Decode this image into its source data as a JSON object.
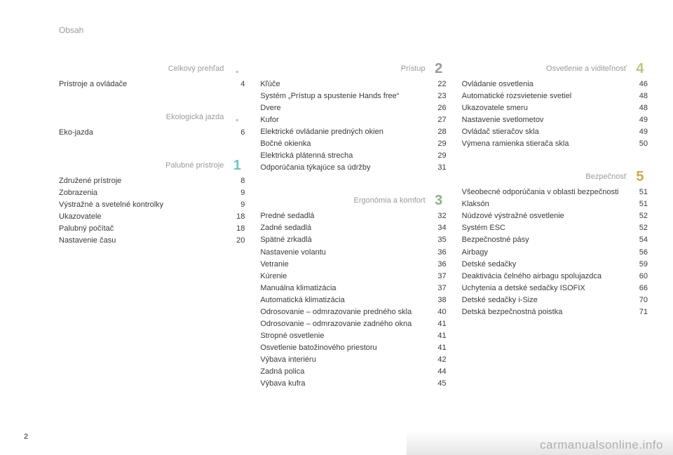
{
  "header": "Obsah",
  "page_number": "2",
  "watermark": "carmanualsonline.info",
  "columns": [
    {
      "sections": [
        {
          "title": "Celkový prehľad",
          "number": ".",
          "rule_color": "#d7c7d8",
          "num_color": "#bdbdbd",
          "entries": [
            {
              "label": "Prístroje a ovládače",
              "page": "4"
            }
          ]
        },
        {
          "title": "Ekologická jazda",
          "number": ".",
          "rule_color": "#d9e26f",
          "num_color": "#bdbdbd",
          "entries": [
            {
              "label": "Eko-jazda",
              "page": "6"
            }
          ]
        },
        {
          "title": "Palubné prístroje",
          "number": "1",
          "rule_color": "#6fc6c4",
          "num_color": "#6fc6c4",
          "entries": [
            {
              "label": "Združené prístroje",
              "page": "8"
            },
            {
              "label": "Zobrazenia",
              "page": "9"
            },
            {
              "label": "Výstražné a svetelné kontrolky",
              "page": "9"
            },
            {
              "label": "Ukazovatele",
              "page": "18"
            },
            {
              "label": "Palubný počítač",
              "page": "18"
            },
            {
              "label": "Nastavenie času",
              "page": "20"
            }
          ]
        }
      ]
    },
    {
      "sections": [
        {
          "title": "Prístup",
          "number": "2",
          "rule_color": "#9a9a9a",
          "num_color": "#9a9a9a",
          "entries": [
            {
              "label": "Kľúče",
              "page": "22"
            },
            {
              "label": "Systém „Prístup a spustenie Hands free“",
              "page": "23"
            },
            {
              "label": "Dvere",
              "page": "26"
            },
            {
              "label": "Kufor",
              "page": "27"
            },
            {
              "label": "Elektrické ovládanie predných okien",
              "page": "28"
            },
            {
              "label": "Bočné okienka",
              "page": "29"
            },
            {
              "label": "Elektrická plátenná strecha",
              "page": "29"
            },
            {
              "label": "Odporúčania týkajúce sa údržby",
              "page": "31"
            }
          ]
        },
        {
          "title": "Ergonómia a komfort",
          "number": "3",
          "rule_color": "#8fb089",
          "num_color": "#8fb089",
          "entries": [
            {
              "label": "Predné sedadlá",
              "page": "32"
            },
            {
              "label": "Zadné sedadlá",
              "page": "34"
            },
            {
              "label": "Spätné zrkadlá",
              "page": "35"
            },
            {
              "label": "Nastavenie volantu",
              "page": "36"
            },
            {
              "label": "Vetranie",
              "page": "36"
            },
            {
              "label": "Kúrenie",
              "page": "37"
            },
            {
              "label": "Manuálna klimatizácia",
              "page": "37"
            },
            {
              "label": "Automatická klimatizácia",
              "page": "38"
            },
            {
              "label": "Odrosovanie – odmrazovanie predného skla",
              "page": "40"
            },
            {
              "label": "Odrosovanie – odmrazovanie zadného okna",
              "page": "41"
            },
            {
              "label": "Stropné osvetlenie",
              "page": "41"
            },
            {
              "label": "Osvetlenie batožinového priestoru",
              "page": "41"
            },
            {
              "label": "Výbava interiéru",
              "page": "42"
            },
            {
              "label": "Zadná polica",
              "page": "44"
            },
            {
              "label": "Výbava kufra",
              "page": "45"
            }
          ]
        }
      ]
    },
    {
      "sections": [
        {
          "title": "Osvetlenie a viditeľnosť",
          "number": "4",
          "rule_color": "#b7c97b",
          "num_color": "#b7c97b",
          "entries": [
            {
              "label": "Ovládanie osvetlenia",
              "page": "46"
            },
            {
              "label": "Automatické rozsvietenie svetiel",
              "page": "48"
            },
            {
              "label": "Ukazovatele smeru",
              "page": "48"
            },
            {
              "label": "Nastavenie svetlometov",
              "page": "49"
            },
            {
              "label": "Ovládač stieračov skla",
              "page": "49"
            },
            {
              "label": "Výmena ramienka stierača skla",
              "page": "50"
            }
          ]
        },
        {
          "title": "Bezpečnosť",
          "number": "5",
          "rule_color": "#d0a94f",
          "num_color": "#d0a94f",
          "entries": [
            {
              "label": "Všeobecné odporúčania v oblasti bezpečnosti",
              "page": "51"
            },
            {
              "label": "Klaksón",
              "page": "51"
            },
            {
              "label": "Núdzové výstražné osvetlenie",
              "page": "52"
            },
            {
              "label": "Systém ESC",
              "page": "52"
            },
            {
              "label": "Bezpečnostné pásy",
              "page": "54"
            },
            {
              "label": "Airbagy",
              "page": "56"
            },
            {
              "label": "Detské sedačky",
              "page": "59"
            },
            {
              "label": "Deaktivácia čelného airbagu spolujazdca",
              "page": "60"
            },
            {
              "label": "Uchytenia a detské sedačky ISOFIX",
              "page": "66"
            },
            {
              "label": "Detské sedačky i-Size",
              "page": "70"
            },
            {
              "label": "Detská bezpečnostná poistka",
              "page": "71"
            }
          ]
        }
      ]
    }
  ]
}
